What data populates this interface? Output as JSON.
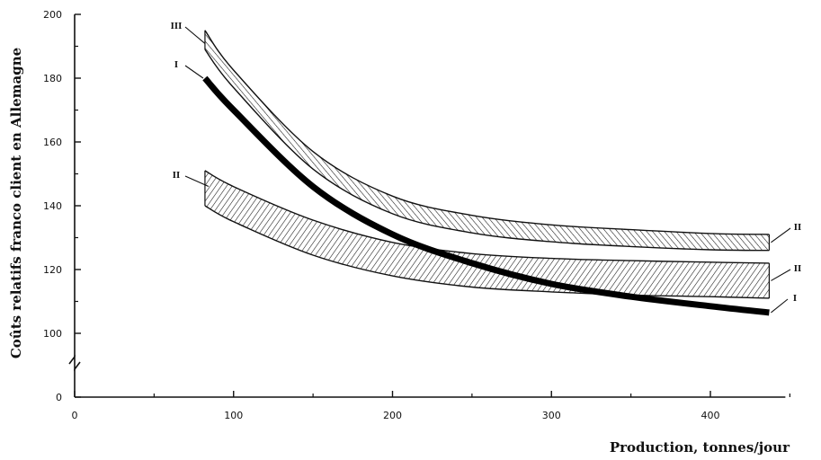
{
  "chart_data": {
    "type": "area",
    "xlabel": "Production, tonnes/jour",
    "ylabel": "Coûts relatifs franco client en Allemagne",
    "xlim": [
      0,
      450
    ],
    "ylim": [
      0,
      200
    ],
    "y_axis_break": true,
    "x_ticks": [
      0,
      100,
      200,
      300,
      400
    ],
    "y_ticks": [
      0,
      100,
      120,
      140,
      160,
      180,
      200
    ],
    "grid": false,
    "legend": "none",
    "series": [
      {
        "label": "I",
        "style": "thick-line",
        "x": [
          82,
          100,
          150,
          200,
          250,
          300,
          350,
          400,
          437
        ],
        "y": [
          180,
          170,
          146,
          131,
          122,
          115.5,
          111.5,
          108.5,
          106.5
        ]
      },
      {
        "label": "II",
        "style": "hatched-band",
        "x": [
          82,
          100,
          150,
          200,
          250,
          300,
          350,
          400,
          437
        ],
        "y_upper": [
          151,
          146,
          135.5,
          128.5,
          125,
          123.5,
          122.8,
          122.3,
          122
        ],
        "y_lower": [
          140,
          135,
          124.5,
          118,
          114.5,
          113,
          112,
          111.5,
          111
        ]
      },
      {
        "label": "III",
        "style": "hatched-band",
        "x": [
          82,
          100,
          150,
          200,
          250,
          300,
          350,
          400,
          437
        ],
        "y_upper": [
          195,
          182.5,
          157,
          143,
          137,
          134,
          132.5,
          131.3,
          131
        ],
        "y_lower": [
          189,
          177,
          151.5,
          137.5,
          131.5,
          128.7,
          127.2,
          126.2,
          126
        ]
      }
    ],
    "series_labels": {
      "left": [
        "III",
        "I",
        "II"
      ],
      "right": [
        "II",
        "II",
        "I"
      ]
    }
  }
}
